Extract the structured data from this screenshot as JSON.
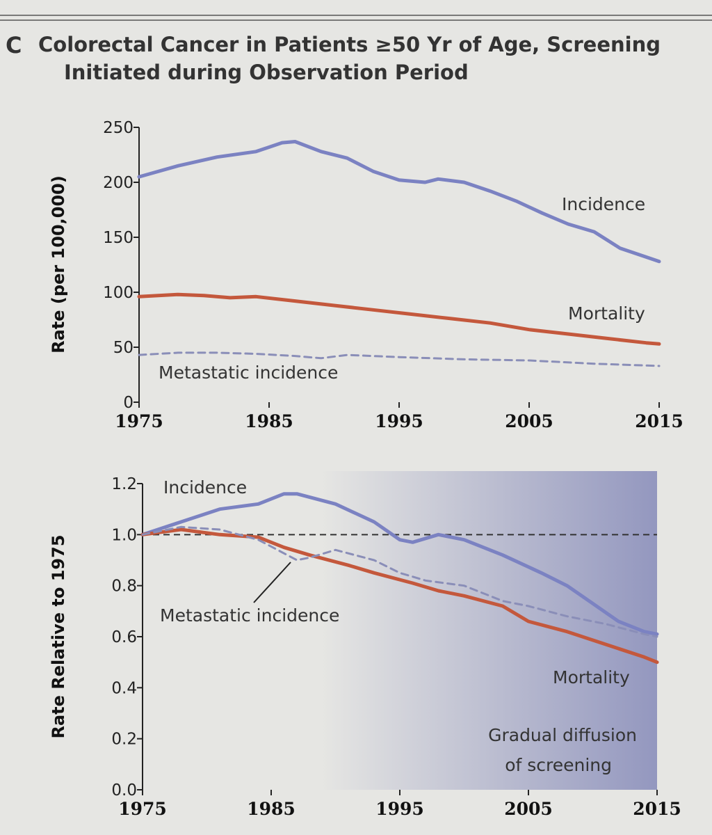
{
  "panel_letter": "C",
  "title_line1": "Colorectal Cancer in Patients ≥50 Yr of Age, Screening",
  "title_line2": "Initiated during Observation Period",
  "colors": {
    "incidence": "#7b82c2",
    "mortality": "#c4583c",
    "metastatic": "#8a8eb8",
    "shade": "#8f93bd"
  },
  "chart_data": [
    {
      "type": "line",
      "title": "",
      "ylabel": "Rate (per 100,000)",
      "xlabel": "",
      "xlim": [
        1975,
        2015
      ],
      "ylim": [
        0,
        250
      ],
      "xticks": [
        1975,
        1985,
        1995,
        2005,
        2015
      ],
      "yticks": [
        0,
        50,
        100,
        150,
        200,
        250
      ],
      "series": [
        {
          "name": "Incidence",
          "style": "solid",
          "x": [
            1975,
            1978,
            1981,
            1984,
            1986,
            1987,
            1989,
            1991,
            1993,
            1995,
            1997,
            1998,
            2000,
            2002,
            2004,
            2006,
            2008,
            2010,
            2012,
            2014,
            2015
          ],
          "y": [
            205,
            215,
            223,
            228,
            236,
            237,
            228,
            222,
            210,
            202,
            200,
            203,
            200,
            192,
            183,
            172,
            162,
            155,
            140,
            132,
            128
          ]
        },
        {
          "name": "Mortality",
          "style": "solid",
          "x": [
            1975,
            1978,
            1980,
            1982,
            1984,
            1987,
            1990,
            1993,
            1996,
            1999,
            2002,
            2005,
            2008,
            2011,
            2014,
            2015
          ],
          "y": [
            96,
            98,
            97,
            95,
            96,
            92,
            88,
            84,
            80,
            76,
            72,
            66,
            62,
            58,
            54,
            53
          ]
        },
        {
          "name": "Metastatic incidence",
          "style": "dashed",
          "x": [
            1975,
            1978,
            1981,
            1984,
            1987,
            1989,
            1991,
            1995,
            2000,
            2005,
            2010,
            2015
          ],
          "y": [
            43,
            45,
            45,
            44,
            42,
            40,
            43,
            41,
            39,
            38,
            35,
            33
          ]
        }
      ],
      "labels": {
        "incidence": "Incidence",
        "mortality": "Mortality",
        "metastatic": "Metastatic incidence"
      }
    },
    {
      "type": "line",
      "title": "",
      "ylabel": "Rate Relative to 1975",
      "xlabel": "",
      "xlim": [
        1975,
        2015
      ],
      "ylim": [
        0,
        1.2
      ],
      "xticks": [
        1975,
        1985,
        1995,
        2005,
        2015
      ],
      "yticks": [
        "0.0",
        "0.2",
        "0.4",
        "0.6",
        "0.8",
        "1.0",
        "1.2"
      ],
      "reference_line": 1.0,
      "shaded_region": {
        "from": 1988,
        "to": 2015,
        "label_line1": "Gradual diffusion",
        "label_line2": "of screening"
      },
      "series": [
        {
          "name": "Incidence",
          "style": "solid",
          "x": [
            1975,
            1978,
            1981,
            1984,
            1986,
            1987,
            1990,
            1993,
            1995,
            1996,
            1998,
            2000,
            2003,
            2006,
            2008,
            2010,
            2012,
            2014,
            2015
          ],
          "y": [
            1.0,
            1.05,
            1.1,
            1.12,
            1.16,
            1.16,
            1.12,
            1.05,
            0.98,
            0.97,
            1.0,
            0.98,
            0.92,
            0.85,
            0.8,
            0.73,
            0.66,
            0.62,
            0.61
          ]
        },
        {
          "name": "Mortality",
          "style": "solid",
          "x": [
            1975,
            1978,
            1981,
            1984,
            1986,
            1988,
            1991,
            1993,
            1996,
            1998,
            2000,
            2003,
            2005,
            2008,
            2011,
            2014,
            2015
          ],
          "y": [
            1.0,
            1.02,
            1.0,
            0.99,
            0.95,
            0.92,
            0.88,
            0.85,
            0.81,
            0.78,
            0.76,
            0.72,
            0.66,
            0.62,
            0.57,
            0.52,
            0.5
          ]
        },
        {
          "name": "Metastatic incidence",
          "style": "dashed",
          "x": [
            1975,
            1978,
            1981,
            1984,
            1987,
            1988,
            1990,
            1993,
            1995,
            1997,
            2000,
            2003,
            2005,
            2008,
            2011,
            2014,
            2015
          ],
          "y": [
            1.0,
            1.03,
            1.02,
            0.98,
            0.9,
            0.91,
            0.94,
            0.9,
            0.85,
            0.82,
            0.8,
            0.74,
            0.72,
            0.68,
            0.65,
            0.61,
            0.6
          ]
        }
      ],
      "labels": {
        "incidence": "Incidence",
        "mortality": "Mortality",
        "metastatic": "Metastatic incidence"
      }
    }
  ]
}
